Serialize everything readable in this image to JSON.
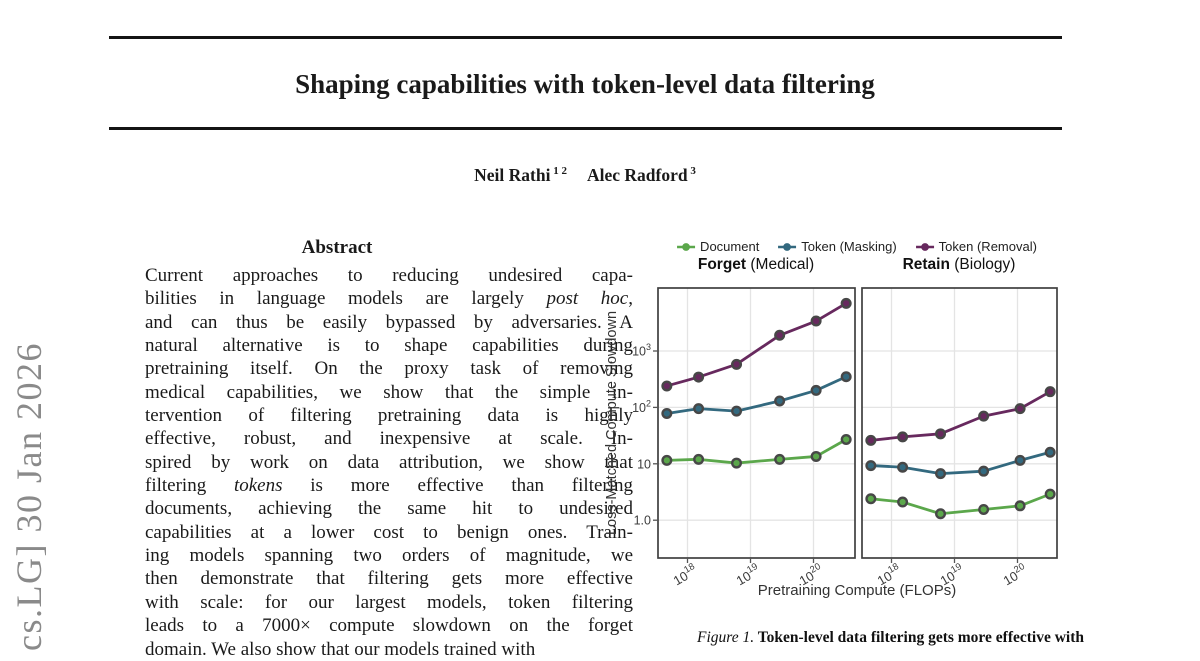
{
  "arxiv_stamp": "cs.LG] 30 Jan 2026",
  "header": {
    "title": "Shaping capabilities with token-level data filtering",
    "authors": [
      {
        "name": "Neil Rathi",
        "sup": "1 2"
      },
      {
        "name": "Alec Radford",
        "sup": "3"
      }
    ]
  },
  "abstract": {
    "heading": "Abstract",
    "lines": [
      [
        {
          "t": "Current approaches to reducing undesired capa-",
          "i": false
        }
      ],
      [
        {
          "t": "bilities in language models are largely ",
          "i": false
        },
        {
          "t": "post hoc",
          "i": true
        },
        {
          "t": ",",
          "i": false
        }
      ],
      [
        {
          "t": "and can thus be easily bypassed by adversaries. A",
          "i": false
        }
      ],
      [
        {
          "t": "natural alternative is to shape capabilities during",
          "i": false
        }
      ],
      [
        {
          "t": "pretraining itself. On the proxy task of removing",
          "i": false
        }
      ],
      [
        {
          "t": "medical capabilities, we show that the simple in-",
          "i": false
        }
      ],
      [
        {
          "t": "tervention of filtering pretraining data is highly",
          "i": false
        }
      ],
      [
        {
          "t": "effective, robust, and inexpensive at scale. In-",
          "i": false
        }
      ],
      [
        {
          "t": "spired by work on data attribution, we show that",
          "i": false
        }
      ],
      [
        {
          "t": "filtering ",
          "i": false
        },
        {
          "t": "tokens",
          "i": true
        },
        {
          "t": " is more effective than filtering",
          "i": false
        }
      ],
      [
        {
          "t": "documents, achieving the same hit to undesired",
          "i": false
        }
      ],
      [
        {
          "t": "capabilities at a lower cost to benign ones. Train-",
          "i": false
        }
      ],
      [
        {
          "t": "ing models spanning two orders of magnitude, we",
          "i": false
        }
      ],
      [
        {
          "t": "then demonstrate that filtering gets more effective",
          "i": false
        }
      ],
      [
        {
          "t": "with scale: for our largest models, token filtering",
          "i": false
        }
      ],
      [
        {
          "t": "leads to a 7000× compute slowdown on the forget",
          "i": false
        }
      ],
      [
        {
          "t": "domain. We also show that our models trained with",
          "i": false
        }
      ]
    ]
  },
  "figure": {
    "caption_segments": [
      {
        "t": "Figure 1.",
        "style": "italic"
      },
      {
        "t": " Token-level data filtering gets more effective with",
        "style": "bold"
      }
    ]
  },
  "chart_data": {
    "type": "line",
    "title": "",
    "xlabel": "Pretraining Compute (FLOPs)",
    "ylabel": "Loss-Matched Compute Slowdown",
    "x_scale": "log",
    "y_scale": "log",
    "x_flops": [
      4.7e+17,
      1.5e+18,
      6e+18,
      2.9e+19,
      1.1e+20,
      3.3e+20
    ],
    "x_ticks": [
      {
        "base": "10",
        "exp": "18",
        "value": 1e+18
      },
      {
        "base": "10",
        "exp": "19",
        "value": 1e+19
      },
      {
        "base": "10",
        "exp": "20",
        "value": 1e+20
      }
    ],
    "y_ticks": [
      {
        "base": "10",
        "exp": "3",
        "value": 1000
      },
      {
        "base": "10",
        "exp": "2",
        "value": 100
      },
      {
        "base": "10",
        "exp": "",
        "value": 10
      },
      {
        "base": "1.0",
        "exp": "",
        "value": 1
      }
    ],
    "legend": [
      {
        "label": "Document",
        "color": "#5ba74b"
      },
      {
        "label": "Token (Masking)",
        "color": "#33697f"
      },
      {
        "label": "Token (Removal)",
        "color": "#67295e"
      }
    ],
    "point_ring_color": "#474747",
    "panels": [
      {
        "title_bold": "Forget",
        "title_rest": " (Medical)",
        "series": [
          {
            "name": "Document",
            "color": "#5ba74b",
            "values": [
              11.5,
              12,
              10.3,
              12,
              13.5,
              27
            ]
          },
          {
            "name": "Token (Masking)",
            "color": "#33697f",
            "values": [
              78,
              95,
              86,
              130,
              200,
              350
            ]
          },
          {
            "name": "Token (Removal)",
            "color": "#67295e",
            "values": [
              240,
              345,
              580,
              1900,
              3400,
              7000
            ]
          }
        ]
      },
      {
        "title_bold": "Retain",
        "title_rest": " (Biology)",
        "series": [
          {
            "name": "Document",
            "color": "#5ba74b",
            "values": [
              2.4,
              2.1,
              1.3,
              1.55,
              1.8,
              2.9
            ]
          },
          {
            "name": "Token (Masking)",
            "color": "#33697f",
            "values": [
              9.3,
              8.7,
              6.7,
              7.4,
              11.5,
              16
            ]
          },
          {
            "name": "Token (Removal)",
            "color": "#67295e",
            "values": [
              26,
              30,
              34,
              70,
              95,
              190
            ]
          }
        ]
      }
    ]
  }
}
